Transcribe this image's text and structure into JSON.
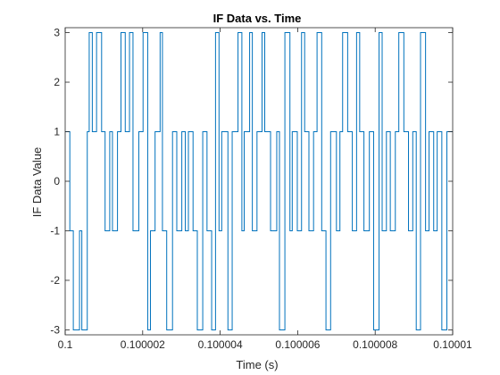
{
  "chart_data": {
    "type": "line",
    "title": "IF Data vs. Time",
    "xlabel": "Time (s)",
    "ylabel": "IF Data Value",
    "xlim": [
      0.1,
      0.10001
    ],
    "ylim": [
      -3.1,
      3.1
    ],
    "xticks": [
      0.1,
      0.100002,
      0.100004,
      0.100006,
      0.100008,
      0.10001
    ],
    "xtick_labels": [
      "0.1",
      "0.100002",
      "0.100004",
      "0.100006",
      "0.100008",
      "0.10001"
    ],
    "yticks": [
      -3,
      -2,
      -1,
      0,
      1,
      2,
      3
    ],
    "ytick_labels": [
      "-3",
      "-2",
      "-1",
      "0",
      "1",
      "2",
      "3"
    ],
    "grid": false,
    "series": [
      {
        "name": "IF Data",
        "color": "#0072BD",
        "style": "stairs",
        "x": [
          0.1,
          0.10000012,
          0.10000021,
          0.10000037,
          0.10000043,
          0.10000057,
          0.10000062,
          0.1000007,
          0.10000081,
          0.10000094,
          0.10000103,
          0.10000115,
          0.10000122,
          0.10000135,
          0.10000144,
          0.10000155,
          0.10000166,
          0.10000175,
          0.1000019,
          0.10000201,
          0.10000213,
          0.1000022,
          0.10000232,
          0.10000245,
          0.10000251,
          0.10000262,
          0.10000277,
          0.10000288,
          0.10000301,
          0.1000031,
          0.10000318,
          0.1000033,
          0.10000341,
          0.10000355,
          0.10000366,
          0.10000378,
          0.10000388,
          0.10000397,
          0.10000404,
          0.1000042,
          0.10000431,
          0.10000446,
          0.10000456,
          0.10000462,
          0.10000476,
          0.10000483,
          0.10000495,
          0.10000508,
          0.10000515,
          0.1000053,
          0.10000546,
          0.10000553,
          0.10000567,
          0.1000058,
          0.10000586,
          0.10000599,
          0.1000061,
          0.10000618,
          0.10000629,
          0.10000641,
          0.1000065,
          0.10000662,
          0.10000673,
          0.10000685,
          0.100007,
          0.10000709,
          0.10000716,
          0.10000729,
          0.10000741,
          0.10000752,
          0.1000076,
          0.10000771,
          0.10000785,
          0.10000796,
          0.1000081,
          0.10000818,
          0.10000829,
          0.10000839,
          0.10000852,
          0.10000861,
          0.10000874,
          0.10000886,
          0.10000897,
          0.10000906,
          0.10000917,
          0.1000093,
          0.10000939,
          0.10000951,
          0.1000096,
          0.10000972,
          0.10000985,
          0.10001
        ],
        "y": [
          1,
          -1,
          -3,
          -1,
          -3,
          1,
          3,
          1,
          3,
          1,
          -1,
          1,
          -1,
          1,
          3,
          1,
          3,
          -1,
          1,
          3,
          -3,
          -1,
          1,
          3,
          -1,
          -3,
          1,
          -1,
          1,
          -1,
          1,
          -1,
          -3,
          1,
          -1,
          -3,
          3,
          -1,
          1,
          -3,
          1,
          3,
          -1,
          1,
          3,
          -1,
          1,
          3,
          1,
          -1,
          1,
          -3,
          3,
          -1,
          1,
          -1,
          3,
          1,
          -1,
          1,
          3,
          -1,
          -3,
          1,
          -1,
          1,
          3,
          1,
          -1,
          3,
          1,
          -1,
          1,
          -3,
          3,
          -1,
          1,
          -1,
          1,
          3,
          1,
          -1,
          1,
          -3,
          3,
          -1,
          1,
          -1,
          1,
          -3,
          1,
          1
        ]
      }
    ]
  }
}
